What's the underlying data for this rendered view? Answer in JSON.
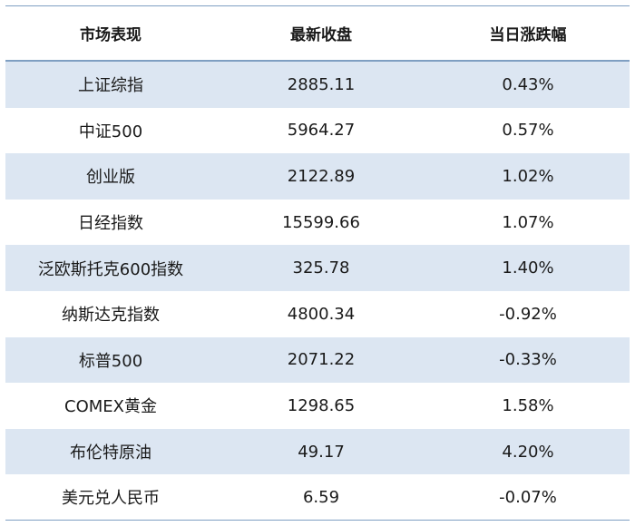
{
  "header": {
    "col1": "市场表现",
    "col2": "最新收盘",
    "col3": "当日涨跌幅"
  },
  "rows": [
    {
      "name": "上证综指",
      "close": "2885.11",
      "change": "0.43%"
    },
    {
      "name": "中证500",
      "close": "5964.27",
      "change": "0.57%"
    },
    {
      "name": "创业版",
      "close": "2122.89",
      "change": "1.02%"
    },
    {
      "name": "日经指数",
      "close": "15599.66",
      "change": "1.07%"
    },
    {
      "name": "泛欧斯托克600指数",
      "close": "325.78",
      "change": "1.40%"
    },
    {
      "name": "纳斯达克指数",
      "close": "4800.34",
      "change": "-0.92%"
    },
    {
      "name": "标普500",
      "close": "2071.22",
      "change": "-0.33%"
    },
    {
      "name": "COMEX黄金",
      "close": "1298.65",
      "change": "1.58%"
    },
    {
      "name": "布伦特原油",
      "close": "49.17",
      "change": "4.20%"
    },
    {
      "name": "美元兑人民币",
      "close": "6.59",
      "change": "-0.07%"
    }
  ],
  "colors": {
    "row_shade": "#dce6f2",
    "rule": "#7f9fc2"
  }
}
